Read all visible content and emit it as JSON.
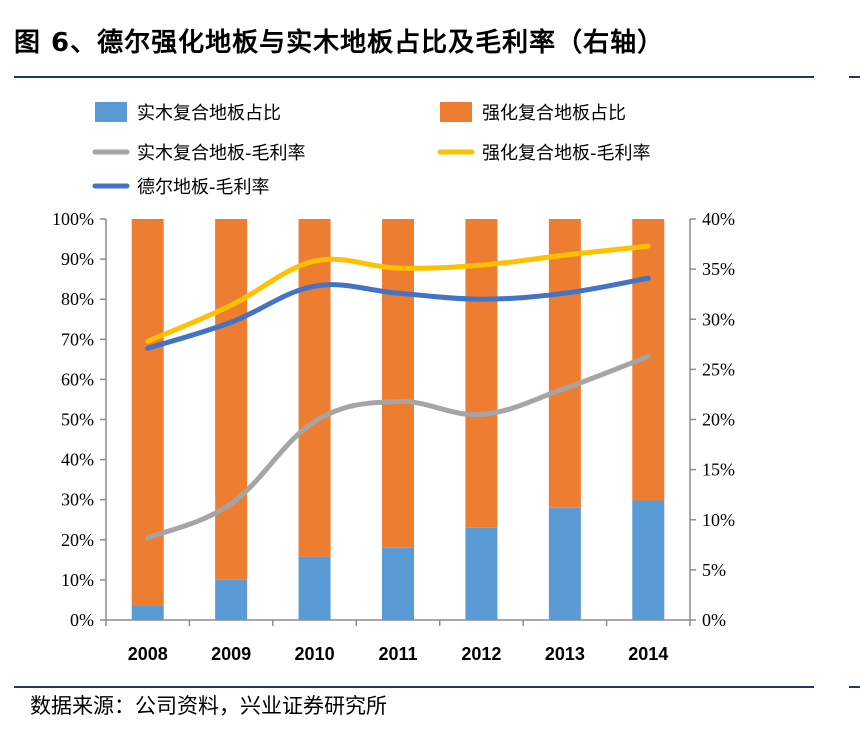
{
  "figure": {
    "title": "图 6、德尔强化地板与实木地板占比及毛利率（右轴）",
    "source": "数据来源：公司资料，兴业证券研究所"
  },
  "colors": {
    "solid_share": "#5b9bd5",
    "laminate_share": "#ed7d31",
    "solid_margin": "#a5a5a5",
    "laminate_margin": "#ffc000",
    "der_margin": "#4472c4",
    "rule": "#1f3864",
    "axis": "#8c8c8c"
  },
  "chart_data": {
    "type": "bar",
    "stacked": true,
    "categories": [
      "2008",
      "2009",
      "2010",
      "2011",
      "2012",
      "2013",
      "2014"
    ],
    "series": [
      {
        "name": "实木复合地板占比",
        "kind": "bar",
        "axis": "left",
        "values": [
          3.5,
          10,
          15.8,
          18,
          23,
          28,
          29.8
        ]
      },
      {
        "name": "强化复合地板占比",
        "kind": "bar",
        "axis": "left",
        "values": [
          96.5,
          90,
          84.2,
          82,
          77,
          72,
          70.2
        ]
      },
      {
        "name": "实木复合地板-毛利率",
        "kind": "line",
        "axis": "right",
        "values": [
          8.2,
          11.6,
          19.8,
          21.8,
          20.5,
          23.1,
          26.3
        ]
      },
      {
        "name": "强化复合地板-毛利率",
        "kind": "line",
        "axis": "right",
        "values": [
          27.8,
          31.4,
          35.8,
          35.1,
          35.4,
          36.4,
          37.3
        ]
      },
      {
        "name": "德尔地板-毛利率",
        "kind": "line",
        "axis": "right",
        "values": [
          27.1,
          29.7,
          33.3,
          32.6,
          32.0,
          32.6,
          34.1
        ]
      }
    ],
    "y_left": {
      "min": 0,
      "max": 100,
      "step": 10,
      "ticks": [
        "0%",
        "10%",
        "20%",
        "30%",
        "40%",
        "50%",
        "60%",
        "70%",
        "80%",
        "90%",
        "100%"
      ]
    },
    "y_right": {
      "min": 0,
      "max": 40,
      "step": 5,
      "ticks": [
        "0%",
        "5%",
        "10%",
        "15%",
        "20%",
        "25%",
        "30%",
        "35%",
        "40%"
      ]
    },
    "legend": {
      "position": "top",
      "items": [
        "实木复合地板占比",
        "强化复合地板占比",
        "实木复合地板-毛利率",
        "强化复合地板-毛利率",
        "德尔地板-毛利率"
      ]
    },
    "grid": false
  }
}
